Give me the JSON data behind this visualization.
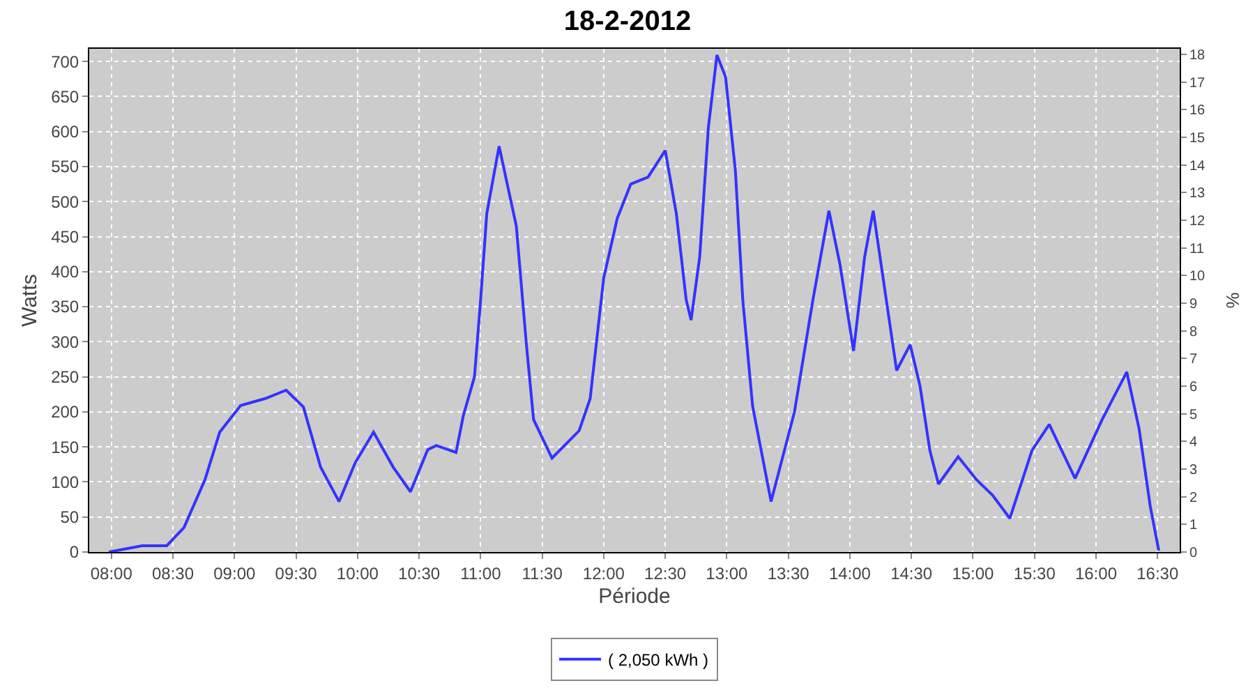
{
  "chart_data": {
    "type": "line",
    "title": "18-2-2012",
    "xlabel": "Période",
    "ylabel": "Watts",
    "y2label": "%",
    "x": [
      7.98,
      8.25,
      8.45,
      8.59,
      8.76,
      8.88,
      9.05,
      9.25,
      9.42,
      9.56,
      9.7,
      9.85,
      9.98,
      10.13,
      10.29,
      10.43,
      10.57,
      10.64,
      10.8,
      10.86,
      10.95,
      11.0,
      11.05,
      11.15,
      11.29,
      11.37,
      11.43,
      11.58,
      11.8,
      11.89,
      12.0,
      12.11,
      12.22,
      12.36,
      12.5,
      12.59,
      12.67,
      12.71,
      12.78,
      12.85,
      12.92,
      12.99,
      13.07,
      13.13,
      13.21,
      13.36,
      13.55,
      13.7,
      13.83,
      13.92,
      14.03,
      14.12,
      14.19,
      14.27,
      14.38,
      14.49,
      14.57,
      14.65,
      14.72,
      14.88,
      15.03,
      15.16,
      15.3,
      15.48,
      15.62,
      15.83,
      16.05,
      16.25,
      16.35,
      16.44,
      16.51
    ],
    "series": [
      {
        "name": "( 2,050 kWh )",
        "color": "#3333ff",
        "values": [
          0,
          9,
          9,
          35,
          103,
          171,
          209,
          219,
          231,
          207,
          121,
          72,
          127,
          171,
          121,
          86,
          146,
          152,
          142,
          195,
          250,
          360,
          483,
          579,
          465,
          300,
          189,
          134,
          173,
          219,
          391,
          476,
          525,
          535,
          573,
          483,
          360,
          331,
          421,
          605,
          709,
          678,
          544,
          360,
          208,
          72,
          200,
          360,
          487,
          410,
          287,
          421,
          487,
          391,
          259,
          296,
          237,
          145,
          97,
          136,
          103,
          81,
          48,
          145,
          182,
          105,
          189,
          257,
          176,
          66,
          2
        ]
      }
    ],
    "xlim": [
      7.82,
      16.68
    ],
    "xticks": [
      {
        "value": 8,
        "label": "08:00"
      },
      {
        "value": 8.5,
        "label": "08:30"
      },
      {
        "value": 9,
        "label": "09:00"
      },
      {
        "value": 9.5,
        "label": "09:30"
      },
      {
        "value": 10,
        "label": "10:00"
      },
      {
        "value": 10.5,
        "label": "10:30"
      },
      {
        "value": 11,
        "label": "11:00"
      },
      {
        "value": 11.5,
        "label": "11:30"
      },
      {
        "value": 12,
        "label": "12:00"
      },
      {
        "value": 12.5,
        "label": "12:30"
      },
      {
        "value": 13,
        "label": "13:00"
      },
      {
        "value": 13.5,
        "label": "13:30"
      },
      {
        "value": 14,
        "label": "14:00"
      },
      {
        "value": 14.5,
        "label": "14:30"
      },
      {
        "value": 15,
        "label": "15:00"
      },
      {
        "value": 15.5,
        "label": "15:30"
      },
      {
        "value": 16,
        "label": "16:00"
      },
      {
        "value": 16.5,
        "label": "16:30"
      }
    ],
    "ylim": [
      0,
      718
    ],
    "yticks": [
      0,
      50,
      100,
      150,
      200,
      250,
      300,
      350,
      400,
      450,
      500,
      550,
      600,
      650,
      700
    ],
    "y2lim": [
      0,
      18.2
    ],
    "y2ticks": [
      0,
      1,
      2,
      3,
      4,
      5,
      6,
      7,
      8,
      9,
      10,
      11,
      12,
      13,
      14,
      15,
      16,
      17,
      18
    ],
    "grid": true,
    "legend": "bottom",
    "marker": "none",
    "line_style": "solid"
  }
}
